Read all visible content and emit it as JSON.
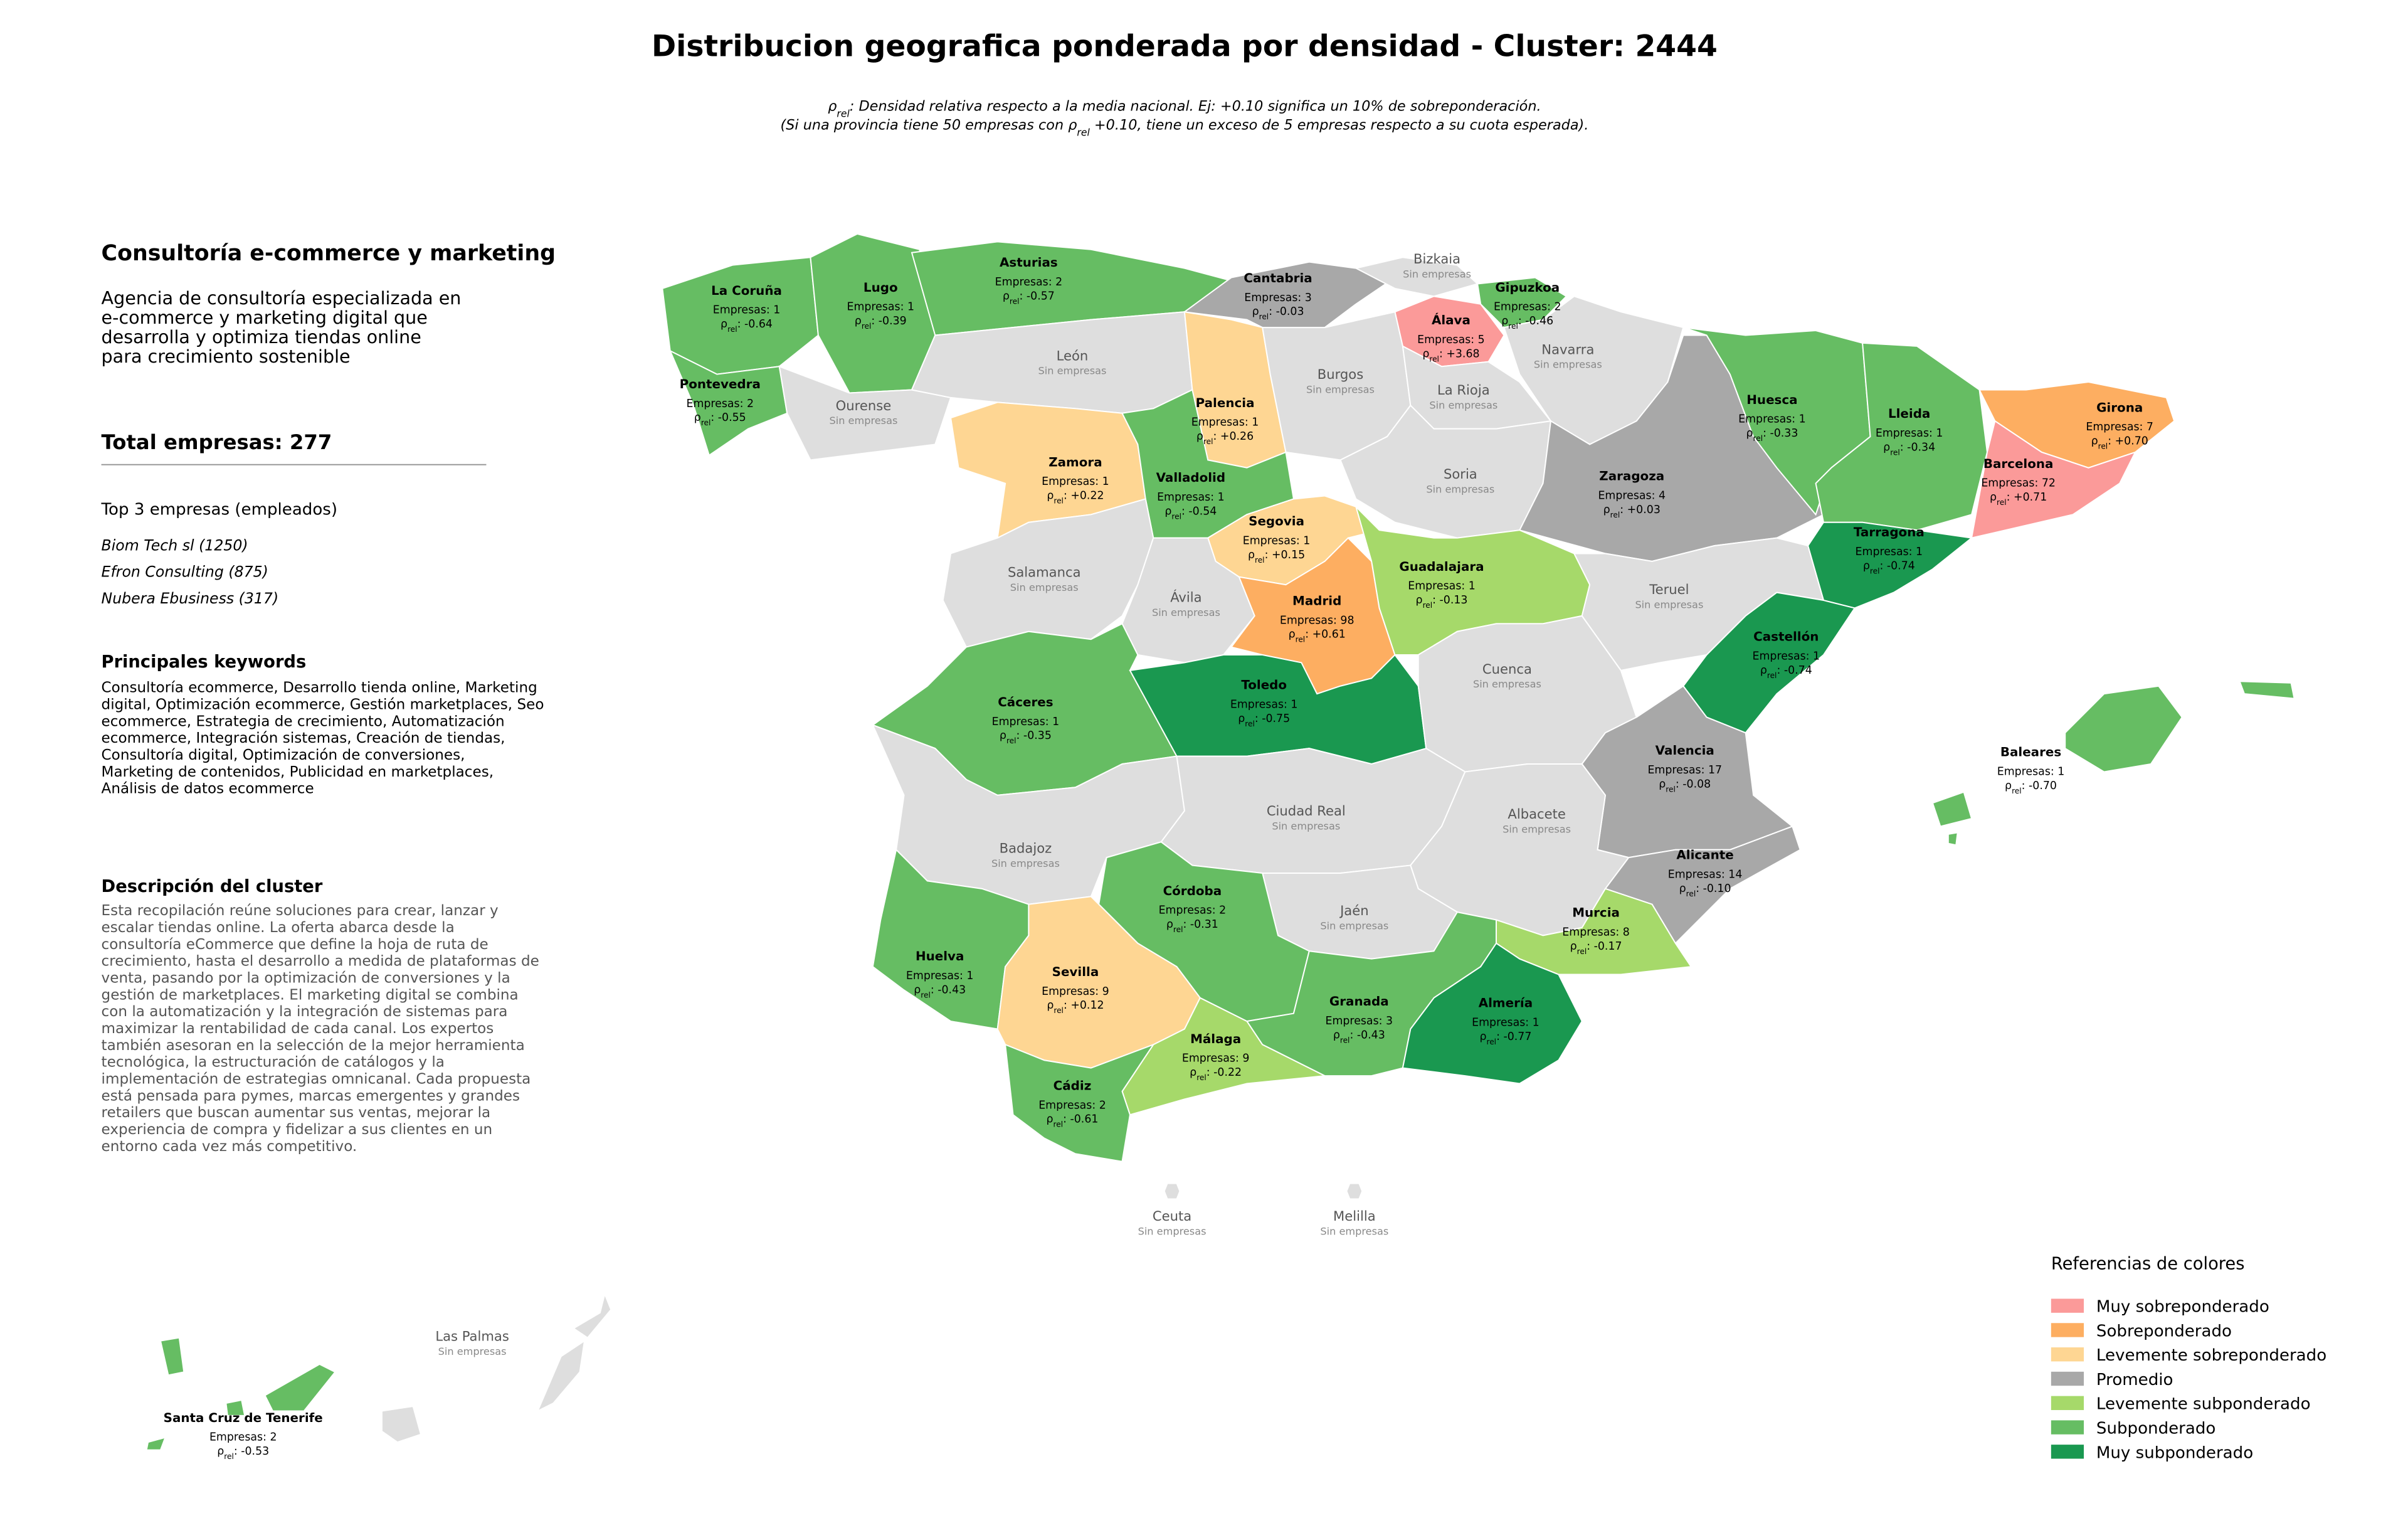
{
  "header": {
    "title": "Distribucion geografica ponderada por densidad - Cluster: 2444",
    "subtitle": [
      [
        "ρ",
        "rel",
        ": Densidad relativa respecto a la media nacional. Ej: +0.10 significa un 10% de sobreponderación."
      ],
      [
        "(Si una provincia tiene 50 empresas con ρ",
        "rel",
        " +0.10, tiene un exceso de 5 empresas respecto a su cuota esperada)."
      ]
    ]
  },
  "sidebar": {
    "title": "Consultoría e-commerce y marketing",
    "description": [
      "Agencia de consultoría especializada en",
      "e-commerce y marketing digital que",
      "desarrolla y optimiza tiendas online",
      "para crecimiento sostenible"
    ],
    "total": "Total empresas: 277",
    "top_heading": "Top 3 empresas (empleados)",
    "top_companies": [
      "Biom Tech sl (1250)",
      "Efron Consulting (875)",
      "Nubera Ebusiness (317)"
    ],
    "keywords_heading": "Principales keywords",
    "keywords": [
      "Consultoría ecommerce, Desarrollo tienda online, Marketing",
      "digital, Optimización ecommerce, Gestión marketplaces, Seo",
      "ecommerce, Estrategia de crecimiento, Automatización",
      "ecommerce, Integración sistemas, Creación de tiendas,",
      "Consultoría digital, Optimización de conversiones,",
      "Marketing de contenidos, Publicidad en marketplaces,",
      "Análisis de datos ecommerce"
    ],
    "cluster_heading": "Descripción del cluster",
    "cluster_description": [
      "Esta recopilación reúne soluciones para crear, lanzar y",
      "escalar tiendas online. La oferta abarca desde la",
      "consultoría eCommerce que define la hoja de ruta de",
      "crecimiento, hasta el desarrollo a medida de plataformas de",
      "venta, pasando por la optimización de conversiones y la",
      "gestión de marketplaces. El marketing digital se combina",
      "con la automatización y la integración de sistemas para",
      "maximizar la rentabilidad de cada canal. Los expertos",
      "también asesoran en la selección de la mejor herramienta",
      "tecnológica, la estructuración de catálogos y la",
      "implementación de estrategias omnicanal. Cada propuesta",
      "está pensada para pymes, marcas emergentes y grandes",
      "retailers que buscan aumentar sus ventas, mejorar la",
      "experiencia de compra y fidelizar a sus clientes en un",
      "entorno cada vez más competitivo."
    ]
  },
  "provinces": [
    {
      "name": "La Coruña",
      "companies": "Empresas: 1",
      "rho": [
        "ρ",
        "rel",
        ": -0.64"
      ],
      "color": "#66bd63"
    },
    {
      "name": "Lugo",
      "companies": "Empresas: 1",
      "rho": [
        "ρ",
        "rel",
        ": -0.39"
      ],
      "color": "#66bd63"
    },
    {
      "name": "Asturias",
      "companies": "Empresas: 2",
      "rho": [
        "ρ",
        "rel",
        ": -0.57"
      ],
      "color": "#66bd63"
    },
    {
      "name": "Cantabria",
      "companies": "Empresas: 3",
      "rho": [
        "ρ",
        "rel",
        ": -0.03"
      ],
      "color": "#a8a8a8"
    },
    {
      "name": "Bizkaia",
      "status": "Sin empresas",
      "color": "#dedede"
    },
    {
      "name": "Gipuzkoa",
      "companies": "Empresas: 2",
      "rho": [
        "ρ",
        "rel",
        ": -0.46"
      ],
      "color": "#66bd63"
    },
    {
      "name": "Álava",
      "companies": "Empresas: 5",
      "rho": [
        "ρ",
        "rel",
        ": +3.68"
      ],
      "color": "#fb9a99"
    },
    {
      "name": "Navarra",
      "status": "Sin empresas",
      "color": "#dedede"
    },
    {
      "name": "Pontevedra",
      "companies": "Empresas: 2",
      "rho": [
        "ρ",
        "rel",
        ": -0.55"
      ],
      "color": "#66bd63"
    },
    {
      "name": "Ourense",
      "status": "Sin empresas",
      "color": "#dedede"
    },
    {
      "name": "León",
      "status": "Sin empresas",
      "color": "#dedede"
    },
    {
      "name": "Palencia",
      "companies": "Empresas: 1",
      "rho": [
        "ρ",
        "rel",
        ": +0.26"
      ],
      "color": "#fed693"
    },
    {
      "name": "Burgos",
      "status": "Sin empresas",
      "color": "#dedede"
    },
    {
      "name": "La Rioja",
      "status": "Sin empresas",
      "color": "#dedede"
    },
    {
      "name": "Zamora",
      "companies": "Empresas: 1",
      "rho": [
        "ρ",
        "rel",
        ": +0.22"
      ],
      "color": "#fed693"
    },
    {
      "name": "Valladolid",
      "companies": "Empresas: 1",
      "rho": [
        "ρ",
        "rel",
        ": -0.54"
      ],
      "color": "#66bd63"
    },
    {
      "name": "Soria",
      "status": "Sin empresas",
      "color": "#dedede"
    },
    {
      "name": "Zaragoza",
      "companies": "Empresas: 4",
      "rho": [
        "ρ",
        "rel",
        ": +0.03"
      ],
      "color": "#a8a8a8"
    },
    {
      "name": "Huesca",
      "companies": "Empresas: 1",
      "rho": [
        "ρ",
        "rel",
        ": -0.33"
      ],
      "color": "#66bd63"
    },
    {
      "name": "Lleida",
      "companies": "Empresas: 1",
      "rho": [
        "ρ",
        "rel",
        ": -0.34"
      ],
      "color": "#66bd63"
    },
    {
      "name": "Girona",
      "companies": "Empresas: 7",
      "rho": [
        "ρ",
        "rel",
        ": +0.70"
      ],
      "color": "#fdae61"
    },
    {
      "name": "Barcelona",
      "companies": "Empresas: 72",
      "rho": [
        "ρ",
        "rel",
        ": +0.71"
      ],
      "color": "#fb9a99"
    },
    {
      "name": "Tarragona",
      "companies": "Empresas: 1",
      "rho": [
        "ρ",
        "rel",
        ": -0.74"
      ],
      "color": "#1a9850"
    },
    {
      "name": "Salamanca",
      "status": "Sin empresas",
      "color": "#dedede"
    },
    {
      "name": "Segovia",
      "companies": "Empresas: 1",
      "rho": [
        "ρ",
        "rel",
        ": +0.15"
      ],
      "color": "#fed693"
    },
    {
      "name": "Ávila",
      "status": "Sin empresas",
      "color": "#dedede"
    },
    {
      "name": "Madrid",
      "companies": "Empresas: 98",
      "rho": [
        "ρ",
        "rel",
        ": +0.61"
      ],
      "color": "#fdae61"
    },
    {
      "name": "Guadalajara",
      "companies": "Empresas: 1",
      "rho": [
        "ρ",
        "rel",
        ": -0.13"
      ],
      "color": "#a6d96a"
    },
    {
      "name": "Teruel",
      "status": "Sin empresas",
      "color": "#dedede"
    },
    {
      "name": "Cáceres",
      "companies": "Empresas: 1",
      "rho": [
        "ρ",
        "rel",
        ": -0.35"
      ],
      "color": "#66bd63"
    },
    {
      "name": "Toledo",
      "companies": "Empresas: 1",
      "rho": [
        "ρ",
        "rel",
        ": -0.75"
      ],
      "color": "#1a9850"
    },
    {
      "name": "Cuenca",
      "status": "Sin empresas",
      "color": "#dedede"
    },
    {
      "name": "Castellón",
      "companies": "Empresas: 1",
      "rho": [
        "ρ",
        "rel",
        ": -0.74"
      ],
      "color": "#1a9850"
    },
    {
      "name": "Valencia",
      "companies": "Empresas: 17",
      "rho": [
        "ρ",
        "rel",
        ": -0.08"
      ],
      "color": "#a8a8a8"
    },
    {
      "name": "Badajoz",
      "status": "Sin empresas",
      "color": "#dedede"
    },
    {
      "name": "Ciudad Real",
      "status": "Sin empresas",
      "color": "#dedede"
    },
    {
      "name": "Albacete",
      "status": "Sin empresas",
      "color": "#dedede"
    },
    {
      "name": "Alicante",
      "companies": "Empresas: 14",
      "rho": [
        "ρ",
        "rel",
        ": -0.10"
      ],
      "color": "#a8a8a8"
    },
    {
      "name": "Jaén",
      "status": "Sin empresas",
      "color": "#dedede"
    },
    {
      "name": "Córdoba",
      "companies": "Empresas: 2",
      "rho": [
        "ρ",
        "rel",
        ": -0.31"
      ],
      "color": "#66bd63"
    },
    {
      "name": "Murcia",
      "companies": "Empresas: 8",
      "rho": [
        "ρ",
        "rel",
        ": -0.17"
      ],
      "color": "#a6d96a"
    },
    {
      "name": "Huelva",
      "companies": "Empresas: 1",
      "rho": [
        "ρ",
        "rel",
        ": -0.43"
      ],
      "color": "#66bd63"
    },
    {
      "name": "Sevilla",
      "companies": "Empresas: 9",
      "rho": [
        "ρ",
        "rel",
        ": +0.12"
      ],
      "color": "#fed693"
    },
    {
      "name": "Granada",
      "companies": "Empresas: 3",
      "rho": [
        "ρ",
        "rel",
        ": -0.43"
      ],
      "color": "#66bd63"
    },
    {
      "name": "Almería",
      "companies": "Empresas: 1",
      "rho": [
        "ρ",
        "rel",
        ": -0.77"
      ],
      "color": "#1a9850"
    },
    {
      "name": "Málaga",
      "companies": "Empresas: 9",
      "rho": [
        "ρ",
        "rel",
        ": -0.22"
      ],
      "color": "#a6d96a"
    },
    {
      "name": "Cádiz",
      "companies": "Empresas: 2",
      "rho": [
        "ρ",
        "rel",
        ": -0.61"
      ],
      "color": "#66bd63"
    },
    {
      "name": "Baleares",
      "companies": "Empresas: 1",
      "rho": [
        "ρ",
        "rel",
        ": -0.70"
      ],
      "color": "#66bd63"
    },
    {
      "name": "Santa Cruz de Tenerife",
      "companies": "Empresas: 2",
      "rho": [
        "ρ",
        "rel",
        ": -0.53"
      ],
      "color": "#66bd63"
    },
    {
      "name": "Las Palmas",
      "status": "Sin empresas",
      "color": "#dedede"
    },
    {
      "name": "Ceuta",
      "status": "Sin empresas",
      "color": "#dedede"
    },
    {
      "name": "Melilla",
      "status": "Sin empresas",
      "color": "#dedede"
    }
  ],
  "legend": {
    "title": "Referencias de colores",
    "items": [
      {
        "label": "Muy sobreponderado",
        "color": "#fb9a99"
      },
      {
        "label": "Sobreponderado",
        "color": "#fdae61"
      },
      {
        "label": "Levemente sobreponderado",
        "color": "#fed693"
      },
      {
        "label": "Promedio",
        "color": "#a8a8a8"
      },
      {
        "label": "Levemente subponderado",
        "color": "#a6d96a"
      },
      {
        "label": "Subponderado",
        "color": "#66bd63"
      },
      {
        "label": "Muy subponderado",
        "color": "#1a9850"
      }
    ]
  }
}
